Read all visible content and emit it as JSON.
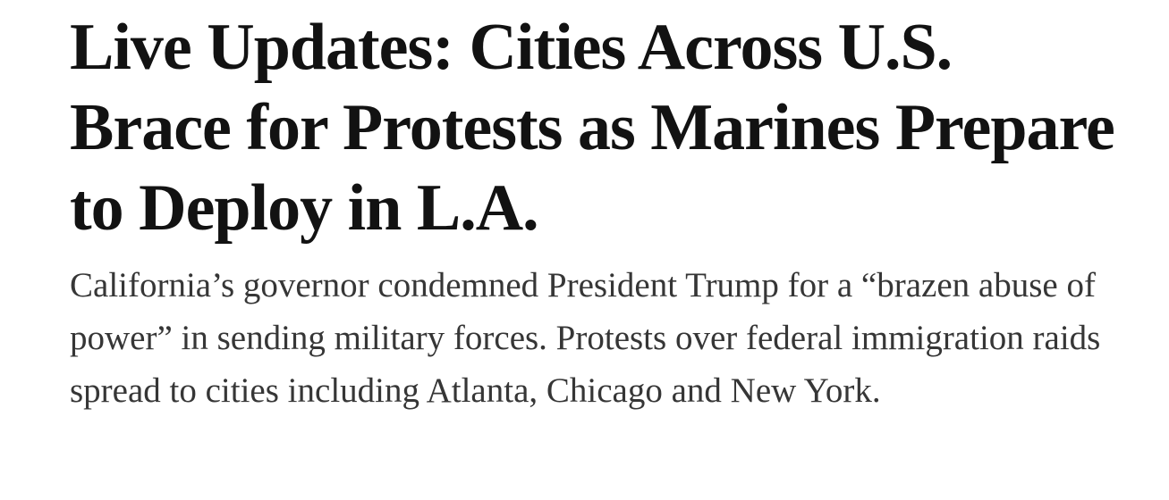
{
  "headline": "Live Updates: Cities Across U.S. Brace for Protests as Marines Prepare to Deploy in L.A.",
  "summary": "California’s governor condemned President Trump for a “brazen abuse of power” in sending military forces. Protests over federal immigration raids spread to cities including Atlanta, Chicago and New York."
}
